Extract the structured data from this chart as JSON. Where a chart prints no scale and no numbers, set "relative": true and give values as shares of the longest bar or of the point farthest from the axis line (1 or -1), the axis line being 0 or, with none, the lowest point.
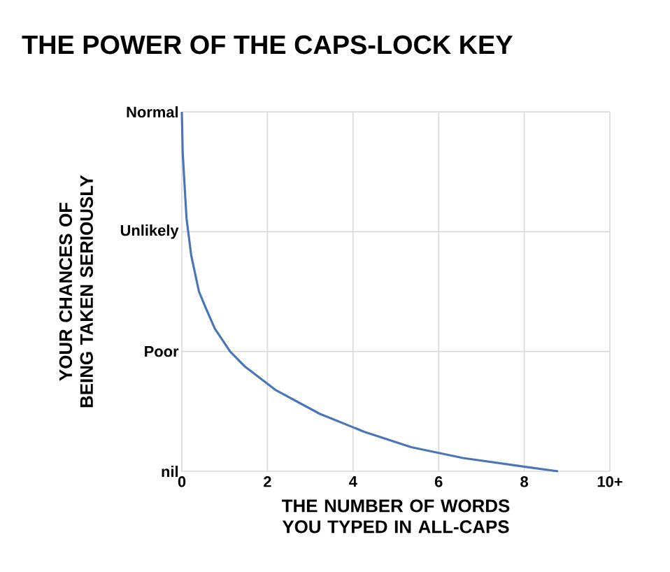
{
  "chart_data": {
    "type": "line",
    "title": "THE POWER OF THE CAPS-LOCK KEY",
    "xlabel": "THE NUMBER OF WORDS YOU TYPED IN ALL-CAPS",
    "ylabel": "YOUR CHANCES OF BEING TAKEN SERIOUSLY",
    "x": [
      0,
      0.02,
      0.07,
      0.11,
      0.22,
      0.4,
      0.55,
      0.77,
      1.13,
      1.46,
      2.18,
      3.22,
      4.26,
      5.36,
      6.57,
      8.0,
      8.79
    ],
    "series": [
      {
        "color": "#4a76b8",
        "values": [
          1,
          0.887,
          0.783,
          0.703,
          0.6,
          0.5,
          0.457,
          0.397,
          0.333,
          0.293,
          0.227,
          0.16,
          0.11,
          0.067,
          0.037,
          0.013,
          0.0
        ]
      }
    ],
    "relative": true,
    "xlim": [
      0,
      10
    ],
    "xticks": [
      0,
      2,
      4,
      6,
      8,
      {
        "value": 10,
        "label": "10+"
      }
    ],
    "annotations": [
      "nil",
      "Poor",
      "Unlikely",
      "Normal"
    ],
    "grid": true,
    "marker": "none",
    "line_style": "solid"
  }
}
